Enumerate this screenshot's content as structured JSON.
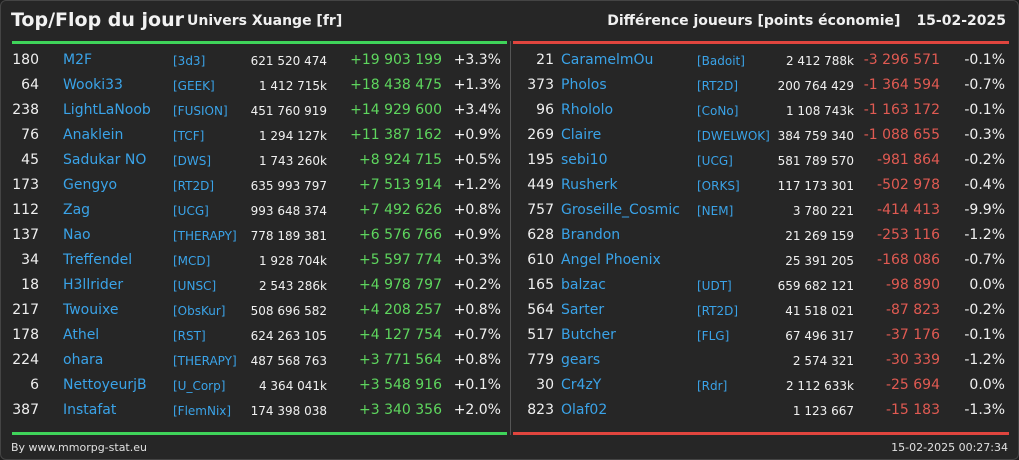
{
  "header": {
    "title": "Top/Flop du jour",
    "universe": "Univers Xuange [fr]",
    "metric": "Différence joueurs [points économie]",
    "date": "15-02-2025"
  },
  "colors": {
    "top": "#3fd45a",
    "flop": "#e0453e",
    "link": "#3aa3e8"
  },
  "top": [
    {
      "rank": "180",
      "name": "M2F",
      "alliance": "[3d3]",
      "points": "621 520 474",
      "diff": "+19 903 199",
      "pct": "+3.3%"
    },
    {
      "rank": "64",
      "name": "Wooki33",
      "alliance": "[GEEK]",
      "points": "1 412 715k",
      "diff": "+18 438 475",
      "pct": "+1.3%"
    },
    {
      "rank": "238",
      "name": "LightLaNoob",
      "alliance": "[FUSION]",
      "points": "451 760 919",
      "diff": "+14 929 600",
      "pct": "+3.4%"
    },
    {
      "rank": "76",
      "name": "Anaklein",
      "alliance": "[TCF]",
      "points": "1 294 127k",
      "diff": "+11 387 162",
      "pct": "+0.9%"
    },
    {
      "rank": "45",
      "name": "Sadukar NO",
      "alliance": "[DWS]",
      "points": "1 743 260k",
      "diff": "+8 924 715",
      "pct": "+0.5%"
    },
    {
      "rank": "173",
      "name": "Gengyo",
      "alliance": "[RT2D]",
      "points": "635 993 797",
      "diff": "+7 513 914",
      "pct": "+1.2%"
    },
    {
      "rank": "112",
      "name": "Zag",
      "alliance": "[UCG]",
      "points": "993 648 374",
      "diff": "+7 492 626",
      "pct": "+0.8%"
    },
    {
      "rank": "137",
      "name": "Nao",
      "alliance": "[THERAPY]",
      "points": "778 189 381",
      "diff": "+6 576 766",
      "pct": "+0.9%"
    },
    {
      "rank": "34",
      "name": "Treffendel",
      "alliance": "[MCD]",
      "points": "1 928 704k",
      "diff": "+5 597 774",
      "pct": "+0.3%"
    },
    {
      "rank": "18",
      "name": "H3llrider",
      "alliance": "[UNSC]",
      "points": "2 543 286k",
      "diff": "+4 978 797",
      "pct": "+0.2%"
    },
    {
      "rank": "217",
      "name": "Twouixe",
      "alliance": "[ObsKur]",
      "points": "508 696 582",
      "diff": "+4 208 257",
      "pct": "+0.8%"
    },
    {
      "rank": "178",
      "name": "Athel",
      "alliance": "[RST]",
      "points": "624 263 105",
      "diff": "+4 127 754",
      "pct": "+0.7%"
    },
    {
      "rank": "224",
      "name": "ohara",
      "alliance": "[THERAPY]",
      "points": "487 568 763",
      "diff": "+3 771 564",
      "pct": "+0.8%"
    },
    {
      "rank": "6",
      "name": "NettoyeurjB",
      "alliance": "[U_Corp]",
      "points": "4 364 041k",
      "diff": "+3 548 916",
      "pct": "+0.1%"
    },
    {
      "rank": "387",
      "name": "Instafat",
      "alliance": "[FlemNix]",
      "points": "174 398 038",
      "diff": "+3 340 356",
      "pct": "+2.0%"
    }
  ],
  "flop": [
    {
      "rank": "21",
      "name": "CaramelmOu",
      "alliance": "[Badoit]",
      "points": "2 412 788k",
      "diff": "-3 296 571",
      "pct": "-0.1%"
    },
    {
      "rank": "373",
      "name": "Pholos",
      "alliance": "[RT2D]",
      "points": "200 764 429",
      "diff": "-1 364 594",
      "pct": "-0.7%"
    },
    {
      "rank": "96",
      "name": "Rhololo",
      "alliance": "[CoNo]",
      "points": "1 108 743k",
      "diff": "-1 163 172",
      "pct": "-0.1%"
    },
    {
      "rank": "269",
      "name": "Claire",
      "alliance": "[DWELWOK]",
      "points": "384 759 340",
      "diff": "-1 088 655",
      "pct": "-0.3%"
    },
    {
      "rank": "195",
      "name": "sebi10",
      "alliance": "[UCG]",
      "points": "581 789 570",
      "diff": "-981 864",
      "pct": "-0.2%"
    },
    {
      "rank": "449",
      "name": "Rusherk",
      "alliance": "[ORKS]",
      "points": "117 173 301",
      "diff": "-502 978",
      "pct": "-0.4%"
    },
    {
      "rank": "757",
      "name": "Groseille_Cosmic",
      "alliance": "[NEM]",
      "points": "3 780 221",
      "diff": "-414 413",
      "pct": "-9.9%"
    },
    {
      "rank": "628",
      "name": "Brandon",
      "alliance": "",
      "points": "21 269 159",
      "diff": "-253 116",
      "pct": "-1.2%"
    },
    {
      "rank": "610",
      "name": "Angel Phoenix",
      "alliance": "",
      "points": "25 391 205",
      "diff": "-168 086",
      "pct": "-0.7%"
    },
    {
      "rank": "165",
      "name": "balzac",
      "alliance": "[UDT]",
      "points": "659 682 121",
      "diff": "-98 890",
      "pct": "0.0%"
    },
    {
      "rank": "564",
      "name": "Sarter",
      "alliance": "[RT2D]",
      "points": "41 518 021",
      "diff": "-87 823",
      "pct": "-0.2%"
    },
    {
      "rank": "517",
      "name": "Butcher",
      "alliance": "[FLG]",
      "points": "67 496 317",
      "diff": "-37 176",
      "pct": "-0.1%"
    },
    {
      "rank": "779",
      "name": "gears",
      "alliance": "",
      "points": "2 574 321",
      "diff": "-30 339",
      "pct": "-1.2%"
    },
    {
      "rank": "30",
      "name": "Cr4zY",
      "alliance": "[Rdr]",
      "points": "2 112 633k",
      "diff": "-25 694",
      "pct": "0.0%"
    },
    {
      "rank": "823",
      "name": "Olaf02",
      "alliance": "",
      "points": "1 123 667",
      "diff": "-15 183",
      "pct": "-1.3%"
    }
  ],
  "footer": {
    "credit": "By www.mmorpg-stat.eu",
    "timestamp": "15-02-2025 00:27:34"
  }
}
